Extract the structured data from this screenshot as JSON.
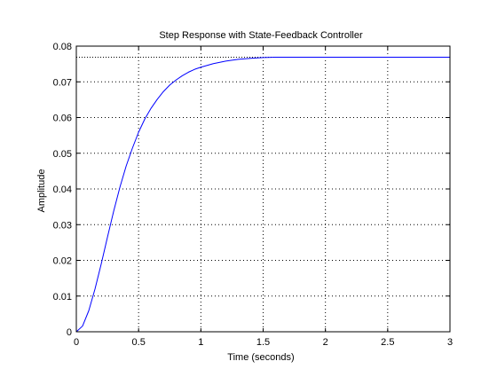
{
  "chart_data": {
    "type": "line",
    "title": "Step Response with State-Feedback Controller",
    "xlabel": "Time (seconds)",
    "ylabel": "Amplitude",
    "xlim": [
      0,
      3
    ],
    "ylim": [
      0,
      0.08
    ],
    "xticks": [
      0,
      0.5,
      1,
      1.5,
      2,
      2.5,
      3
    ],
    "xtick_labels": [
      "0",
      "0.5",
      "1",
      "1.5",
      "2",
      "2.5",
      "3"
    ],
    "yticks": [
      0,
      0.01,
      0.02,
      0.03,
      0.04,
      0.05,
      0.06,
      0.07,
      0.08
    ],
    "ytick_labels": [
      "0",
      "0.01",
      "0.02",
      "0.03",
      "0.04",
      "0.05",
      "0.06",
      "0.07",
      "0.08"
    ],
    "grid": true,
    "steady_state_value": 0.0769,
    "series": [
      {
        "color": "#0000ff",
        "x": [
          0,
          0.05,
          0.1,
          0.15,
          0.2,
          0.25,
          0.3,
          0.35,
          0.4,
          0.45,
          0.5,
          0.55,
          0.6,
          0.65,
          0.7,
          0.75,
          0.8,
          0.85,
          0.9,
          0.95,
          1.0,
          1.1,
          1.2,
          1.3,
          1.4,
          1.5,
          1.6,
          1.8,
          2.0,
          2.2,
          2.5,
          2.8,
          3.0
        ],
        "y": [
          0,
          0.0016,
          0.0059,
          0.012,
          0.019,
          0.0265,
          0.0338,
          0.0405,
          0.0464,
          0.0514,
          0.0559,
          0.0596,
          0.0626,
          0.0651,
          0.0673,
          0.0691,
          0.0705,
          0.0717,
          0.0727,
          0.0735,
          0.0741,
          0.0751,
          0.0758,
          0.0763,
          0.0766,
          0.0768,
          0.0769,
          0.0769,
          0.0769,
          0.0769,
          0.0769,
          0.0769,
          0.0769
        ]
      }
    ],
    "colors": {
      "line": "#0000ff",
      "axes": "#000000",
      "grid": "#000000",
      "background": "#ffffff"
    }
  }
}
